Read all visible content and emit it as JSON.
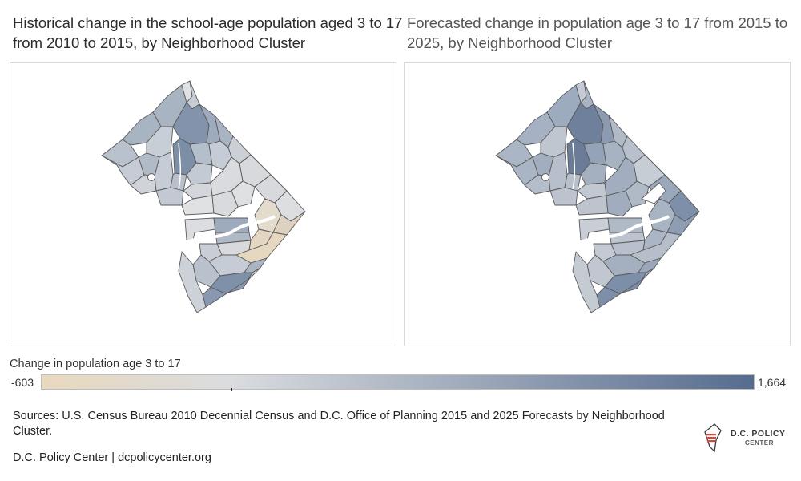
{
  "maps": {
    "left": {
      "title": "Historical change in the school-age population aged 3 to 17 from 2010 to 2015, by Neighborhood Cluster"
    },
    "right": {
      "title": "Forecasted change in population age 3 to 17 from 2015 to 2025, by Neighborhood Cluster"
    }
  },
  "legend": {
    "title": "Change in population age 3 to 17",
    "min_label": "-603",
    "max_label": "1,664",
    "min_value": -603,
    "max_value": 1664,
    "colors": {
      "low": "#e9d9bd",
      "mid": "#dadcdf",
      "high": "#566c8f"
    }
  },
  "footer": {
    "sources": "Sources: U.S. Census Bureau 2010 Decennial Census and D.C. Office of Planning 2015 and 2025 Forecasts by Neighborhood Cluster.",
    "credit": "D.C. Policy Center | dcpolicycenter.org"
  },
  "logo": {
    "line1": "D.C. POLICY",
    "line2": "CENTER",
    "icon": "dc-map-flag-icon",
    "accent_color": "#d9443a"
  }
}
